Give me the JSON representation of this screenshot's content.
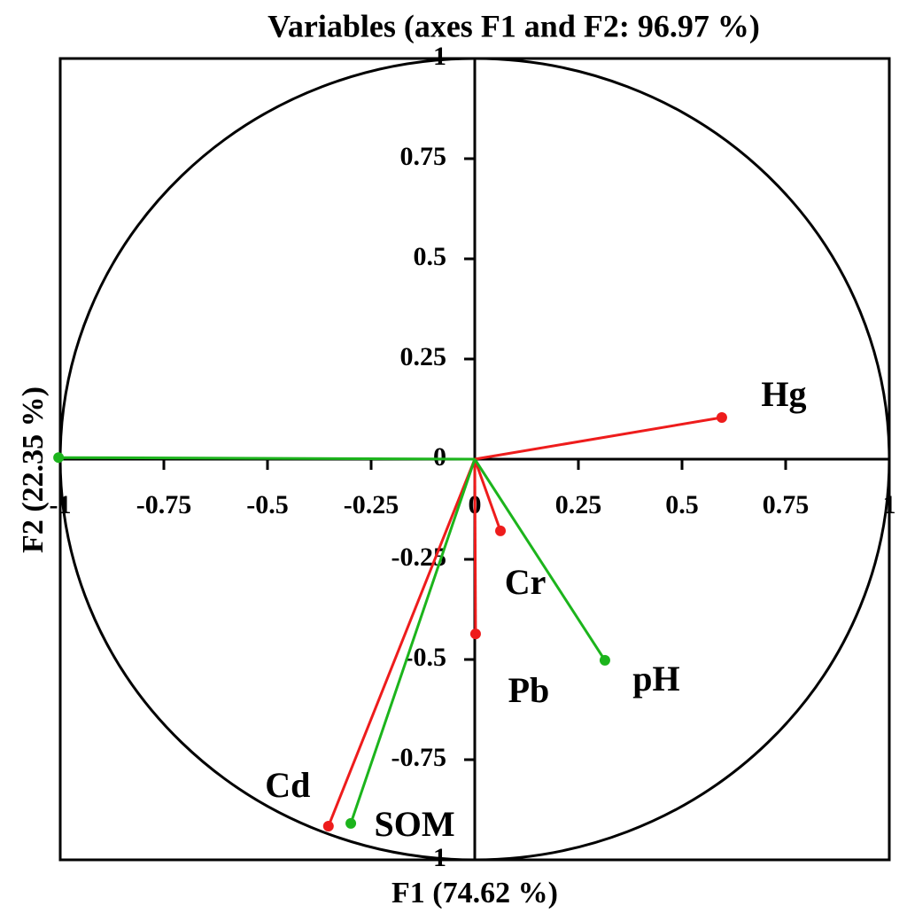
{
  "chart_data": {
    "type": "correlation-circle",
    "title": "Variables (axes F1 and F2: 96.97 %)",
    "x_label": "F1 (74.62 %)",
    "y_label": "F2 (22.35 %)",
    "xlim": [
      -1,
      1
    ],
    "ylim": [
      -1,
      1
    ],
    "xticks": [
      -1,
      -0.75,
      -0.5,
      -0.25,
      0,
      0.25,
      0.5,
      0.75,
      1
    ],
    "yticks": [
      -1,
      -0.75,
      -0.5,
      -0.25,
      0,
      0.25,
      0.5,
      0.75,
      1
    ],
    "variables": [
      {
        "name": "Hg",
        "x": 0.596,
        "y": 0.104,
        "color": "#ee1c1c",
        "label_color": "#000000"
      },
      {
        "name": "Cr",
        "x": 0.062,
        "y": -0.179,
        "color": "#ee1c1c",
        "label_color": "#000000"
      },
      {
        "name": "Pb",
        "x": 0.002,
        "y": -0.436,
        "color": "#ee1c1c",
        "label_color": "#000000"
      },
      {
        "name": "Cd",
        "x": -0.353,
        "y": -0.916,
        "color": "#ee1c1c",
        "label_color": "#000000"
      },
      {
        "name": "SOM",
        "x": -0.299,
        "y": -0.909,
        "color": "#1cb41c",
        "label_color": "#ee1c1c"
      },
      {
        "name": "pH",
        "x": 0.314,
        "y": -0.502,
        "color": "#1cb41c",
        "label_color": "#ee1c1c"
      },
      {
        "x": -1.004,
        "y": 0.004,
        "color": "#1cb41c"
      }
    ]
  }
}
